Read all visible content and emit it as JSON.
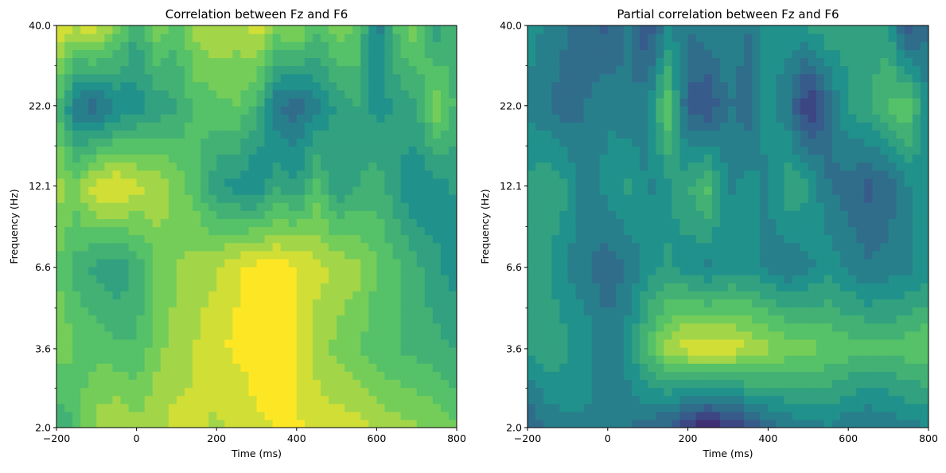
{
  "chart_data": [
    {
      "type": "heatmap",
      "title": "Correlation between Fz and F6",
      "xlabel": "Time (ms)",
      "ylabel": "Frequency (Hz)",
      "xlim": [
        -200,
        800
      ],
      "ylim": [
        2.0,
        40.0
      ],
      "y_scale": "log",
      "x_ticks": [
        "-200",
        "0",
        "200",
        "400",
        "600",
        "800"
      ],
      "y_ticks": [
        "2.0",
        "3.6",
        "6.6",
        "12.1",
        "22.0",
        "40.0"
      ],
      "x": [
        -200,
        -150,
        -100,
        -50,
        0,
        50,
        100,
        150,
        200,
        250,
        300,
        350,
        400,
        450,
        500,
        550,
        600,
        650,
        700,
        750,
        800
      ],
      "y": [
        2.0,
        3.6,
        6.6,
        12.1,
        22.0,
        40.0
      ],
      "z": [
        [
          0.6,
          0.7,
          0.85,
          0.9,
          0.85,
          0.88,
          0.92,
          0.9,
          0.88,
          0.9,
          0.95,
          0.97,
          0.97,
          0.95,
          0.93,
          0.92,
          0.88,
          0.85,
          0.83,
          0.8,
          0.75
        ],
        [
          0.8,
          0.75,
          0.72,
          0.7,
          0.68,
          0.8,
          0.85,
          0.9,
          0.95,
          0.98,
          1.0,
          1.0,
          0.98,
          0.85,
          0.8,
          0.75,
          0.7,
          0.68,
          0.65,
          0.63,
          0.6
        ],
        [
          0.75,
          0.65,
          0.58,
          0.55,
          0.62,
          0.75,
          0.82,
          0.85,
          0.88,
          0.95,
          1.0,
          1.0,
          0.97,
          0.92,
          0.88,
          0.85,
          0.75,
          0.7,
          0.62,
          0.55,
          0.5
        ],
        [
          0.85,
          0.8,
          0.95,
          0.98,
          0.92,
          0.88,
          0.8,
          0.7,
          0.55,
          0.5,
          0.45,
          0.6,
          0.55,
          0.7,
          0.55,
          0.6,
          0.65,
          0.55,
          0.45,
          0.5,
          0.55
        ],
        [
          0.7,
          0.4,
          0.35,
          0.45,
          0.5,
          0.55,
          0.6,
          0.7,
          0.72,
          0.75,
          0.65,
          0.4,
          0.35,
          0.45,
          0.55,
          0.6,
          0.5,
          0.55,
          0.6,
          0.8,
          0.65
        ],
        [
          0.95,
          0.9,
          0.95,
          0.8,
          0.6,
          0.8,
          0.7,
          0.85,
          0.9,
          0.85,
          0.95,
          0.8,
          0.85,
          0.7,
          0.8,
          0.75,
          0.4,
          0.7,
          0.8,
          0.55,
          0.7
        ]
      ],
      "colormap": [
        "#440154",
        "#3b528b",
        "#21918c",
        "#5ec962",
        "#fde725"
      ],
      "grid": false,
      "legend": "none"
    },
    {
      "type": "heatmap",
      "title": "Partial correlation between Fz and F6",
      "xlabel": "Time (ms)",
      "ylabel": "Frequency (Hz)",
      "xlim": [
        -200,
        800
      ],
      "ylim": [
        2.0,
        40.0
      ],
      "y_scale": "log",
      "x_ticks": [
        "-200",
        "0",
        "200",
        "400",
        "600",
        "800"
      ],
      "y_ticks": [
        "2.0",
        "3.6",
        "6.6",
        "12.1",
        "22.0",
        "40.0"
      ],
      "x": [
        -200,
        -150,
        -100,
        -50,
        0,
        50,
        100,
        150,
        200,
        250,
        300,
        350,
        400,
        450,
        500,
        550,
        600,
        650,
        700,
        750,
        800
      ],
      "y": [
        2.0,
        3.6,
        6.6,
        12.1,
        22.0,
        40.0
      ],
      "z": [
        [
          0.3,
          0.4,
          0.45,
          0.45,
          0.42,
          0.4,
          0.35,
          0.3,
          0.15,
          0.1,
          0.15,
          0.25,
          0.35,
          0.4,
          0.42,
          0.45,
          0.4,
          0.38,
          0.4,
          0.45,
          0.45
        ],
        [
          0.55,
          0.6,
          0.55,
          0.5,
          0.4,
          0.5,
          0.7,
          0.85,
          0.95,
          0.95,
          0.95,
          0.9,
          0.85,
          0.8,
          0.78,
          0.75,
          0.72,
          0.7,
          0.7,
          0.72,
          0.75
        ],
        [
          0.6,
          0.55,
          0.45,
          0.4,
          0.35,
          0.4,
          0.5,
          0.55,
          0.5,
          0.45,
          0.5,
          0.5,
          0.45,
          0.4,
          0.45,
          0.5,
          0.45,
          0.4,
          0.42,
          0.45,
          0.5
        ],
        [
          0.55,
          0.6,
          0.55,
          0.4,
          0.5,
          0.55,
          0.45,
          0.5,
          0.6,
          0.7,
          0.45,
          0.5,
          0.45,
          0.6,
          0.55,
          0.4,
          0.35,
          0.3,
          0.35,
          0.45,
          0.5
        ],
        [
          0.45,
          0.4,
          0.35,
          0.4,
          0.45,
          0.4,
          0.45,
          0.75,
          0.3,
          0.25,
          0.4,
          0.35,
          0.5,
          0.4,
          0.15,
          0.35,
          0.55,
          0.6,
          0.7,
          0.75,
          0.45
        ],
        [
          0.5,
          0.45,
          0.4,
          0.35,
          0.3,
          0.4,
          0.25,
          0.45,
          0.4,
          0.45,
          0.45,
          0.4,
          0.5,
          0.5,
          0.55,
          0.6,
          0.55,
          0.55,
          0.55,
          0.25,
          0.4
        ]
      ],
      "colormap": [
        "#440154",
        "#3b528b",
        "#21918c",
        "#5ec962",
        "#fde725"
      ],
      "grid": false,
      "legend": "none"
    }
  ]
}
